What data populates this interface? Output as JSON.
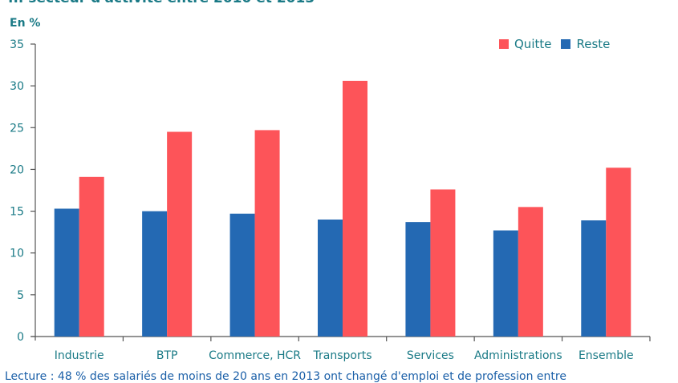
{
  "chart_data": {
    "type": "bar",
    "title": "... secteur d'activité entre 2010 et 2013",
    "ylabel": "En %",
    "xlabel": "",
    "ylim": [
      0,
      35
    ],
    "yticks": [
      0,
      5,
      10,
      15,
      20,
      25,
      30,
      35
    ],
    "grid": false,
    "legend_position": "top-right",
    "categories": [
      "Industrie",
      "BTP",
      "Commerce, HCR",
      "Transports",
      "Services",
      "Administrations",
      "Ensemble"
    ],
    "series": [
      {
        "name": "Reste",
        "color": "#2469b3",
        "values": [
          15.3,
          15.0,
          14.7,
          14.0,
          13.7,
          12.7,
          13.9
        ]
      },
      {
        "name": "Quitte",
        "color": "#fd5459",
        "values": [
          19.1,
          24.5,
          24.7,
          30.6,
          17.6,
          15.5,
          20.2
        ]
      }
    ],
    "legend": [
      {
        "name": "Quitte",
        "color": "#fd5459"
      },
      {
        "name": "Reste",
        "color": "#2469b3"
      }
    ],
    "footnote": "Lecture : 48 % des salariés de moins de 20 ans en 2013 ont changé d'emploi et de profession entre"
  }
}
